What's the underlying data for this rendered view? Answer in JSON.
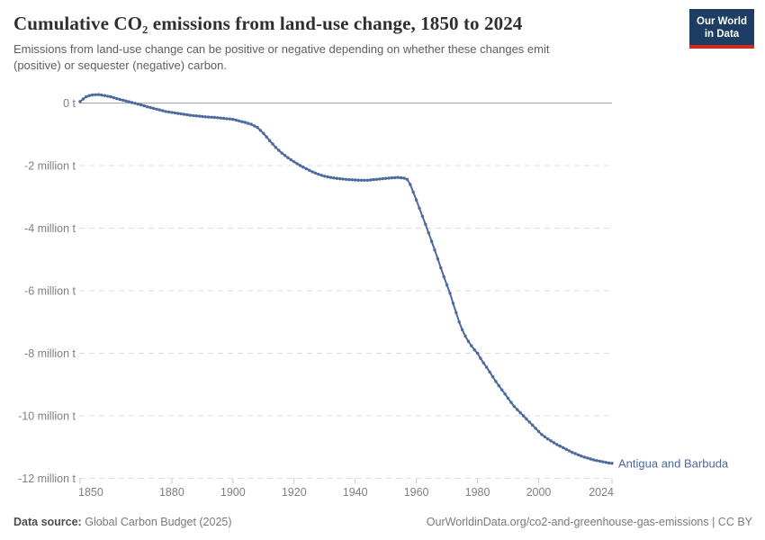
{
  "header": {
    "title": "Cumulative CO₂ emissions from land-use change, 1850 to 2024",
    "subtitle_lines": [
      "Emissions from land-use change can be positive or negative depending on whether these changes emit",
      "(positive) or sequester (negative) carbon."
    ],
    "logo": {
      "line1": "Our World",
      "line2": "in Data",
      "bg_color": "#1d3d63",
      "stripe_color": "#d42b21"
    }
  },
  "footer": {
    "datasource_label": "Data source:",
    "datasource_value": "Global Carbon Budget (2025)",
    "credit": "OurWorldinData.org/co2-and-greenhouse-gas-emissions | CC BY"
  },
  "chart_data": {
    "type": "line",
    "title": "Cumulative CO₂ emissions from land-use change, 1850 to 2024",
    "xlabel": "",
    "ylabel": "",
    "unit": "t CO₂ (millions)",
    "xlim": [
      1850,
      2024
    ],
    "ylim": [
      -12,
      0.6
    ],
    "grid": "horizontal-dashed",
    "legend_position": "end-of-line-label",
    "x_ticks": [
      "1850",
      "1880",
      "1900",
      "1920",
      "1940",
      "1960",
      "1980",
      "2000",
      "2024"
    ],
    "y_ticks": [
      {
        "value": 0,
        "label": "0 t"
      },
      {
        "value": -2,
        "label": "-2 million t"
      },
      {
        "value": -4,
        "label": "-4 million t"
      },
      {
        "value": -6,
        "label": "-6 million t"
      },
      {
        "value": -8,
        "label": "-8 million t"
      },
      {
        "value": -10,
        "label": "-10 million t"
      },
      {
        "value": -12,
        "label": "-12 million t"
      }
    ],
    "marker_interval_years": 1,
    "series": [
      {
        "name": "Antigua and Barbuda",
        "color": "#4C6A9C",
        "values_unit": "million t",
        "points": [
          [
            1850,
            0.05
          ],
          [
            1851,
            0.13
          ],
          [
            1852,
            0.2
          ],
          [
            1853,
            0.24
          ],
          [
            1854,
            0.26
          ],
          [
            1856,
            0.27
          ],
          [
            1858,
            0.24
          ],
          [
            1860,
            0.2
          ],
          [
            1862,
            0.14
          ],
          [
            1864,
            0.09
          ],
          [
            1866,
            0.04
          ],
          [
            1868,
            -0.01
          ],
          [
            1870,
            -0.06
          ],
          [
            1872,
            -0.12
          ],
          [
            1874,
            -0.17
          ],
          [
            1876,
            -0.22
          ],
          [
            1878,
            -0.27
          ],
          [
            1880,
            -0.3
          ],
          [
            1882,
            -0.33
          ],
          [
            1884,
            -0.36
          ],
          [
            1886,
            -0.39
          ],
          [
            1888,
            -0.41
          ],
          [
            1890,
            -0.43
          ],
          [
            1892,
            -0.45
          ],
          [
            1894,
            -0.46
          ],
          [
            1896,
            -0.48
          ],
          [
            1898,
            -0.5
          ],
          [
            1900,
            -0.52
          ],
          [
            1902,
            -0.57
          ],
          [
            1904,
            -0.62
          ],
          [
            1906,
            -0.68
          ],
          [
            1908,
            -0.78
          ],
          [
            1910,
            -0.97
          ],
          [
            1912,
            -1.2
          ],
          [
            1914,
            -1.42
          ],
          [
            1916,
            -1.6
          ],
          [
            1918,
            -1.75
          ],
          [
            1920,
            -1.88
          ],
          [
            1922,
            -2.0
          ],
          [
            1924,
            -2.1
          ],
          [
            1926,
            -2.2
          ],
          [
            1928,
            -2.28
          ],
          [
            1930,
            -2.34
          ],
          [
            1932,
            -2.38
          ],
          [
            1934,
            -2.41
          ],
          [
            1936,
            -2.43
          ],
          [
            1938,
            -2.45
          ],
          [
            1940,
            -2.46
          ],
          [
            1942,
            -2.47
          ],
          [
            1944,
            -2.47
          ],
          [
            1946,
            -2.45
          ],
          [
            1948,
            -2.43
          ],
          [
            1950,
            -2.41
          ],
          [
            1952,
            -2.39
          ],
          [
            1954,
            -2.38
          ],
          [
            1956,
            -2.4
          ],
          [
            1957,
            -2.44
          ],
          [
            1958,
            -2.6
          ],
          [
            1959,
            -2.85
          ],
          [
            1960,
            -3.1
          ],
          [
            1961,
            -3.36
          ],
          [
            1962,
            -3.62
          ],
          [
            1963,
            -3.88
          ],
          [
            1964,
            -4.15
          ],
          [
            1965,
            -4.42
          ],
          [
            1966,
            -4.7
          ],
          [
            1967,
            -4.98
          ],
          [
            1968,
            -5.27
          ],
          [
            1969,
            -5.55
          ],
          [
            1970,
            -5.82
          ],
          [
            1971,
            -6.08
          ],
          [
            1972,
            -6.4
          ],
          [
            1973,
            -6.7
          ],
          [
            1974,
            -7.0
          ],
          [
            1975,
            -7.25
          ],
          [
            1976,
            -7.45
          ],
          [
            1977,
            -7.62
          ],
          [
            1978,
            -7.76
          ],
          [
            1979,
            -7.89
          ],
          [
            1980,
            -8.0
          ],
          [
            1981,
            -8.16
          ],
          [
            1982,
            -8.31
          ],
          [
            1983,
            -8.45
          ],
          [
            1984,
            -8.6
          ],
          [
            1985,
            -8.75
          ],
          [
            1986,
            -8.9
          ],
          [
            1987,
            -9.04
          ],
          [
            1988,
            -9.17
          ],
          [
            1989,
            -9.3
          ],
          [
            1990,
            -9.44
          ],
          [
            1991,
            -9.57
          ],
          [
            1992,
            -9.7
          ],
          [
            1993,
            -9.8
          ],
          [
            1994,
            -9.9
          ],
          [
            1995,
            -10.0
          ],
          [
            1996,
            -10.1
          ],
          [
            1997,
            -10.2
          ],
          [
            1998,
            -10.3
          ],
          [
            1999,
            -10.4
          ],
          [
            2000,
            -10.5
          ],
          [
            2001,
            -10.6
          ],
          [
            2002,
            -10.67
          ],
          [
            2003,
            -10.74
          ],
          [
            2004,
            -10.8
          ],
          [
            2005,
            -10.86
          ],
          [
            2006,
            -10.92
          ],
          [
            2007,
            -10.97
          ],
          [
            2008,
            -11.02
          ],
          [
            2009,
            -11.07
          ],
          [
            2010,
            -11.12
          ],
          [
            2011,
            -11.17
          ],
          [
            2012,
            -11.21
          ],
          [
            2013,
            -11.25
          ],
          [
            2014,
            -11.29
          ],
          [
            2015,
            -11.32
          ],
          [
            2016,
            -11.35
          ],
          [
            2017,
            -11.38
          ],
          [
            2018,
            -11.41
          ],
          [
            2019,
            -11.43
          ],
          [
            2020,
            -11.45
          ],
          [
            2021,
            -11.47
          ],
          [
            2022,
            -11.49
          ],
          [
            2023,
            -11.51
          ],
          [
            2024,
            -11.52
          ]
        ]
      }
    ],
    "colors": {
      "zero_line": "#a5a5a5",
      "gridline": "#dddddd",
      "tick_mark": "#c9c9c9",
      "axis_text": "#808080"
    }
  }
}
